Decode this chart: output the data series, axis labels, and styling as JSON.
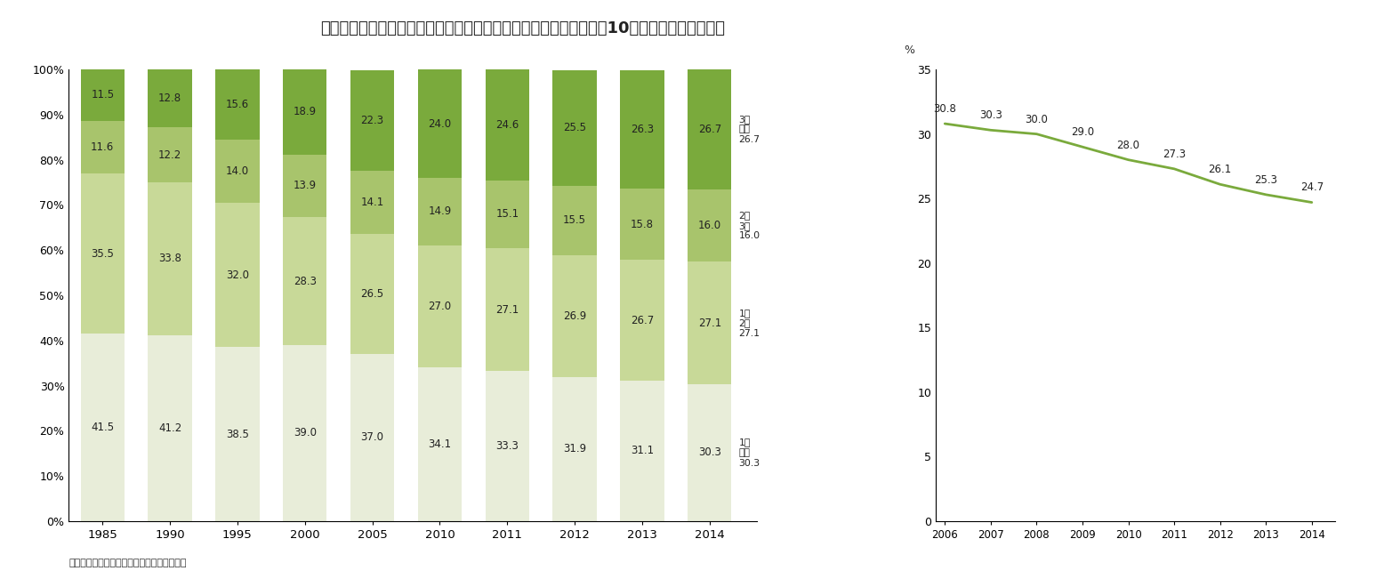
{
  "title": "図表１　結婚生活に入ってから第一子出生までの期間別比率および10か月未満の割合の推移",
  "bar_years": [
    1985,
    1990,
    1995,
    2000,
    2005,
    2010,
    2011,
    2012,
    2013,
    2014
  ],
  "bar_data": {
    "under1": [
      41.5,
      41.2,
      38.5,
      39.0,
      37.0,
      34.1,
      33.3,
      31.9,
      31.1,
      30.3
    ],
    "1to2": [
      35.5,
      33.8,
      32.0,
      28.3,
      26.5,
      27.0,
      27.1,
      26.9,
      26.7,
      27.1
    ],
    "2to3": [
      11.6,
      12.2,
      14.0,
      13.9,
      14.1,
      14.9,
      15.1,
      15.5,
      15.8,
      16.0
    ],
    "over3": [
      11.5,
      12.8,
      15.6,
      18.9,
      22.3,
      24.0,
      24.6,
      25.5,
      26.3,
      26.7
    ]
  },
  "bar_colors": [
    "#e8edd9",
    "#c8d998",
    "#a8c46c",
    "#7aaa3c"
  ],
  "line_years": [
    2006,
    2007,
    2008,
    2009,
    2010,
    2011,
    2012,
    2013,
    2014
  ],
  "line_values": [
    30.8,
    30.3,
    30.0,
    29.0,
    28.0,
    27.3,
    26.1,
    25.3,
    24.7
  ],
  "line_color": "#7aaa3c",
  "legend_labels": [
    "1年未満",
    "1～2年",
    "2～3年",
    "3年以上"
  ],
  "legend_2014_values": [
    "30.3",
    "27.1",
    "16.0",
    "26.7"
  ],
  "legend_texts": [
    "1年\n未満\n30.3",
    "1～\n2年\n27.1",
    "2～\n3年\n16.0",
    "3年\n以上\n26.7"
  ],
  "ylabel_right": "%",
  "source_text": "出所：厚生労働省「人口動態統計」より作成",
  "background_color": "#ffffff"
}
